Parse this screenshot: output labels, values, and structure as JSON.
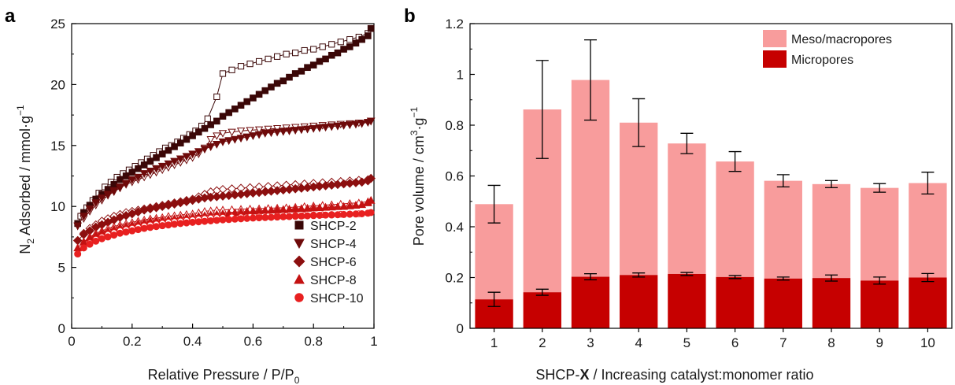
{
  "chart_data": [
    {
      "panel": "a",
      "type": "scatter",
      "xlabel": "Relative Pressure / P/P",
      "xlabel_sub": "0",
      "ylabel_pre": "N",
      "ylabel_sub": "2",
      "ylabel_post": " Adsorbed / mmol·g",
      "ylabel_sup": "−1",
      "xlim": [
        0,
        1
      ],
      "ylim": [
        0,
        25
      ],
      "xticks": [
        "0",
        "0.2",
        "0.4",
        "0.6",
        "0.8",
        "1"
      ],
      "yticks": [
        "0",
        "5",
        "10",
        "15",
        "20",
        "25"
      ],
      "legend_position": "bottom-right",
      "series": [
        {
          "name": "SHCP-2",
          "marker": "square",
          "color": "#3a0707",
          "adsorption_x": [
            0.02,
            0.04,
            0.06,
            0.08,
            0.1,
            0.12,
            0.14,
            0.16,
            0.18,
            0.2,
            0.22,
            0.24,
            0.26,
            0.28,
            0.3,
            0.32,
            0.34,
            0.36,
            0.38,
            0.4,
            0.42,
            0.44,
            0.46,
            0.48,
            0.5,
            0.52,
            0.54,
            0.56,
            0.58,
            0.6,
            0.62,
            0.64,
            0.66,
            0.68,
            0.7,
            0.72,
            0.74,
            0.76,
            0.78,
            0.8,
            0.82,
            0.84,
            0.86,
            0.88,
            0.9,
            0.92,
            0.94,
            0.96,
            0.98,
            0.99
          ],
          "adsorption_y": [
            8.6,
            9.5,
            10.1,
            10.6,
            11.0,
            11.4,
            11.8,
            12.2,
            12.5,
            12.8,
            13.1,
            13.4,
            13.7,
            14.0,
            14.3,
            14.6,
            14.9,
            15.2,
            15.5,
            15.8,
            16.1,
            16.4,
            16.7,
            17.0,
            17.4,
            17.7,
            18.0,
            18.3,
            18.6,
            18.9,
            19.2,
            19.5,
            19.8,
            20.1,
            20.3,
            20.6,
            20.9,
            21.1,
            21.4,
            21.6,
            21.9,
            22.1,
            22.4,
            22.6,
            22.9,
            23.1,
            23.4,
            23.7,
            24.0,
            24.6
          ],
          "desorption_x": [
            0.98,
            0.95,
            0.92,
            0.89,
            0.86,
            0.83,
            0.8,
            0.77,
            0.74,
            0.71,
            0.68,
            0.65,
            0.62,
            0.59,
            0.56,
            0.53,
            0.5,
            0.48,
            0.45,
            0.43,
            0.41,
            0.39,
            0.37,
            0.35,
            0.33,
            0.31,
            0.29,
            0.27,
            0.25,
            0.23,
            0.21,
            0.19,
            0.17,
            0.15,
            0.13,
            0.11,
            0.09,
            0.07,
            0.05,
            0.03
          ],
          "desorption_y": [
            24.2,
            23.9,
            23.7,
            23.5,
            23.3,
            23.1,
            22.9,
            22.8,
            22.6,
            22.5,
            22.3,
            22.1,
            21.9,
            21.7,
            21.5,
            21.2,
            20.9,
            19.0,
            17.2,
            16.6,
            16.2,
            15.9,
            15.6,
            15.3,
            15.0,
            14.8,
            14.5,
            14.2,
            13.9,
            13.6,
            13.3,
            13.0,
            12.7,
            12.4,
            12.0,
            11.6,
            11.1,
            10.5,
            9.9,
            9.2
          ]
        },
        {
          "name": "SHCP-4",
          "marker": "triangle-down",
          "color": "#6e0a0a",
          "adsorption_x": [
            0.02,
            0.04,
            0.06,
            0.08,
            0.1,
            0.12,
            0.14,
            0.16,
            0.18,
            0.2,
            0.22,
            0.24,
            0.26,
            0.28,
            0.3,
            0.32,
            0.34,
            0.36,
            0.38,
            0.4,
            0.42,
            0.44,
            0.46,
            0.48,
            0.5,
            0.52,
            0.54,
            0.56,
            0.58,
            0.6,
            0.62,
            0.64,
            0.66,
            0.68,
            0.7,
            0.72,
            0.74,
            0.76,
            0.78,
            0.8,
            0.82,
            0.84,
            0.86,
            0.88,
            0.9,
            0.92,
            0.94,
            0.96,
            0.98,
            0.99
          ],
          "adsorption_y": [
            8.4,
            9.2,
            9.8,
            10.3,
            10.7,
            11.0,
            11.3,
            11.6,
            11.9,
            12.2,
            12.4,
            12.7,
            12.9,
            13.1,
            13.3,
            13.5,
            13.7,
            13.9,
            14.1,
            14.3,
            14.5,
            14.7,
            14.9,
            15.1,
            15.3,
            15.4,
            15.5,
            15.6,
            15.7,
            15.8,
            15.9,
            16.0,
            16.05,
            16.1,
            16.15,
            16.2,
            16.25,
            16.3,
            16.35,
            16.4,
            16.45,
            16.5,
            16.55,
            16.6,
            16.65,
            16.7,
            16.75,
            16.8,
            16.9,
            17.0
          ],
          "desorption_x": [
            0.98,
            0.95,
            0.92,
            0.89,
            0.86,
            0.83,
            0.8,
            0.77,
            0.74,
            0.71,
            0.68,
            0.65,
            0.62,
            0.59,
            0.56,
            0.53,
            0.5,
            0.48,
            0.46,
            0.44,
            0.42,
            0.4,
            0.38,
            0.36,
            0.34,
            0.32,
            0.3,
            0.28,
            0.26,
            0.24,
            0.22,
            0.2,
            0.18,
            0.16,
            0.14,
            0.12,
            0.1,
            0.08,
            0.06,
            0.04
          ],
          "desorption_y": [
            16.9,
            16.85,
            16.8,
            16.75,
            16.7,
            16.65,
            16.6,
            16.55,
            16.5,
            16.45,
            16.4,
            16.35,
            16.3,
            16.25,
            16.2,
            16.1,
            16.0,
            15.8,
            15.5,
            14.8,
            14.3,
            14.0,
            13.8,
            13.6,
            13.4,
            13.2,
            13.0,
            12.8,
            12.6,
            12.4,
            12.2,
            12.0,
            11.8,
            11.5,
            11.2,
            10.9,
            10.5,
            10.1,
            9.6,
            9.0
          ]
        },
        {
          "name": "SHCP-6",
          "marker": "diamond",
          "color": "#8c0f0f",
          "adsorption_x": [
            0.02,
            0.04,
            0.06,
            0.08,
            0.1,
            0.12,
            0.14,
            0.16,
            0.18,
            0.2,
            0.22,
            0.24,
            0.26,
            0.28,
            0.3,
            0.32,
            0.34,
            0.36,
            0.38,
            0.4,
            0.42,
            0.44,
            0.46,
            0.48,
            0.5,
            0.52,
            0.54,
            0.56,
            0.58,
            0.6,
            0.62,
            0.64,
            0.66,
            0.68,
            0.7,
            0.72,
            0.74,
            0.76,
            0.78,
            0.8,
            0.82,
            0.84,
            0.86,
            0.88,
            0.9,
            0.92,
            0.94,
            0.96,
            0.98,
            0.99
          ],
          "adsorption_y": [
            7.2,
            7.7,
            8.0,
            8.3,
            8.5,
            8.7,
            8.9,
            9.1,
            9.25,
            9.4,
            9.55,
            9.7,
            9.8,
            9.9,
            10.0,
            10.1,
            10.2,
            10.3,
            10.4,
            10.5,
            10.6,
            10.7,
            10.75,
            10.8,
            10.85,
            10.9,
            10.95,
            11.0,
            11.05,
            11.1,
            11.15,
            11.2,
            11.25,
            11.3,
            11.35,
            11.4,
            11.45,
            11.5,
            11.55,
            11.6,
            11.65,
            11.7,
            11.75,
            11.8,
            11.85,
            11.9,
            11.95,
            12.0,
            12.1,
            12.3
          ],
          "desorption_x": [
            0.98,
            0.95,
            0.92,
            0.89,
            0.86,
            0.83,
            0.8,
            0.77,
            0.74,
            0.71,
            0.68,
            0.65,
            0.62,
            0.59,
            0.56,
            0.53,
            0.5,
            0.48,
            0.46,
            0.44,
            0.42,
            0.4,
            0.38,
            0.36,
            0.34,
            0.32,
            0.3,
            0.28,
            0.26,
            0.24,
            0.22,
            0.2,
            0.18,
            0.16,
            0.14,
            0.12,
            0.1,
            0.08,
            0.06,
            0.04
          ],
          "desorption_y": [
            12.2,
            12.15,
            12.1,
            12.05,
            12.0,
            11.95,
            11.9,
            11.85,
            11.8,
            11.75,
            11.7,
            11.65,
            11.6,
            11.55,
            11.5,
            11.45,
            11.4,
            11.3,
            11.2,
            11.0,
            10.8,
            10.6,
            10.5,
            10.4,
            10.3,
            10.2,
            10.1,
            10.0,
            9.9,
            9.8,
            9.7,
            9.6,
            9.5,
            9.35,
            9.2,
            9.0,
            8.8,
            8.5,
            8.2,
            7.8
          ]
        },
        {
          "name": "SHCP-8",
          "marker": "triangle-up",
          "color": "#c41212",
          "adsorption_x": [
            0.02,
            0.04,
            0.06,
            0.08,
            0.1,
            0.12,
            0.14,
            0.16,
            0.18,
            0.2,
            0.22,
            0.24,
            0.26,
            0.28,
            0.3,
            0.32,
            0.34,
            0.36,
            0.38,
            0.4,
            0.42,
            0.44,
            0.46,
            0.48,
            0.5,
            0.52,
            0.54,
            0.56,
            0.58,
            0.6,
            0.62,
            0.64,
            0.66,
            0.68,
            0.7,
            0.72,
            0.74,
            0.76,
            0.78,
            0.8,
            0.82,
            0.84,
            0.86,
            0.88,
            0.9,
            0.92,
            0.94,
            0.96,
            0.98,
            0.99
          ],
          "adsorption_y": [
            6.6,
            7.1,
            7.4,
            7.65,
            7.85,
            8.0,
            8.15,
            8.3,
            8.4,
            8.5,
            8.6,
            8.7,
            8.8,
            8.85,
            8.9,
            8.95,
            9.0,
            9.05,
            9.1,
            9.15,
            9.2,
            9.25,
            9.3,
            9.35,
            9.4,
            9.45,
            9.5,
            9.55,
            9.6,
            9.62,
            9.65,
            9.68,
            9.7,
            9.72,
            9.75,
            9.78,
            9.8,
            9.83,
            9.85,
            9.88,
            9.9,
            9.93,
            9.95,
            9.98,
            10.0,
            10.05,
            10.1,
            10.15,
            10.3,
            10.5
          ],
          "desorption_x": [
            0.98,
            0.95,
            0.92,
            0.89,
            0.86,
            0.83,
            0.8,
            0.77,
            0.74,
            0.71,
            0.68,
            0.65,
            0.62,
            0.59,
            0.56,
            0.53,
            0.5,
            0.48,
            0.46,
            0.44,
            0.42,
            0.4,
            0.38,
            0.36,
            0.34,
            0.32,
            0.3,
            0.28,
            0.26,
            0.24,
            0.22,
            0.2,
            0.18,
            0.16,
            0.14,
            0.12,
            0.1,
            0.08,
            0.06,
            0.04
          ],
          "desorption_y": [
            10.4,
            10.3,
            10.25,
            10.2,
            10.15,
            10.1,
            10.05,
            10.0,
            9.95,
            9.9,
            9.88,
            9.85,
            9.82,
            9.8,
            9.78,
            9.75,
            9.72,
            9.7,
            9.65,
            9.6,
            9.5,
            9.4,
            9.35,
            9.3,
            9.25,
            9.2,
            9.1,
            9.05,
            9.0,
            8.9,
            8.8,
            8.7,
            8.6,
            8.5,
            8.35,
            8.2,
            8.0,
            7.8,
            7.5,
            7.1
          ]
        },
        {
          "name": "SHCP-10",
          "marker": "circle",
          "color": "#e82020",
          "adsorption_x": [
            0.02,
            0.04,
            0.06,
            0.08,
            0.1,
            0.12,
            0.14,
            0.16,
            0.18,
            0.2,
            0.22,
            0.24,
            0.26,
            0.28,
            0.3,
            0.32,
            0.34,
            0.36,
            0.38,
            0.4,
            0.42,
            0.44,
            0.46,
            0.48,
            0.5,
            0.52,
            0.54,
            0.56,
            0.58,
            0.6,
            0.62,
            0.64,
            0.66,
            0.68,
            0.7,
            0.72,
            0.74,
            0.76,
            0.78,
            0.8,
            0.82,
            0.84,
            0.86,
            0.88,
            0.9,
            0.92,
            0.94,
            0.96,
            0.98,
            0.99
          ],
          "adsorption_y": [
            6.1,
            6.6,
            6.9,
            7.15,
            7.35,
            7.5,
            7.65,
            7.8,
            7.9,
            8.0,
            8.1,
            8.2,
            8.28,
            8.35,
            8.42,
            8.48,
            8.54,
            8.6,
            8.65,
            8.7,
            8.74,
            8.78,
            8.82,
            8.86,
            8.9,
            8.93,
            8.96,
            8.99,
            9.02,
            9.05,
            9.07,
            9.09,
            9.11,
            9.13,
            9.15,
            9.17,
            9.19,
            9.21,
            9.23,
            9.25,
            9.27,
            9.29,
            9.3,
            9.32,
            9.34,
            9.36,
            9.38,
            9.4,
            9.45,
            9.5
          ],
          "desorption_x": [
            0.98,
            0.95,
            0.92,
            0.89,
            0.86,
            0.83,
            0.8,
            0.77,
            0.74,
            0.71,
            0.68,
            0.65,
            0.62,
            0.59,
            0.56,
            0.53,
            0.5,
            0.48,
            0.46,
            0.44,
            0.42,
            0.4,
            0.38,
            0.36,
            0.34,
            0.32,
            0.3,
            0.28,
            0.26,
            0.24,
            0.22,
            0.2,
            0.18,
            0.16,
            0.14,
            0.12,
            0.1,
            0.08,
            0.06,
            0.04
          ],
          "desorption_y": [
            9.45,
            9.4,
            9.38,
            9.36,
            9.34,
            9.32,
            9.3,
            9.28,
            9.26,
            9.24,
            9.22,
            9.2,
            9.18,
            9.16,
            9.14,
            9.12,
            9.1,
            9.08,
            9.05,
            9.0,
            8.95,
            8.9,
            8.85,
            8.8,
            8.75,
            8.7,
            8.62,
            8.55,
            8.48,
            8.4,
            8.3,
            8.2,
            8.1,
            8.0,
            7.85,
            7.7,
            7.5,
            7.3,
            7.0,
            6.6
          ]
        }
      ]
    },
    {
      "panel": "b",
      "type": "bar",
      "stacked": true,
      "xlabel_pre": "SHCP-",
      "xlabel_bold": "X",
      "xlabel_post": " / Increasing catalyst:monomer ratio",
      "ylabel_pre": "Pore volume / cm",
      "ylabel_sup1": "3",
      "ylabel_mid": "·g",
      "ylabel_sup2": "−1",
      "ylim": [
        0,
        1.2
      ],
      "yticks": [
        "0",
        "0.2",
        "0.4",
        "0.6",
        "0.8",
        "1",
        "1.2"
      ],
      "categories": [
        "1",
        "2",
        "3",
        "4",
        "5",
        "6",
        "7",
        "8",
        "9",
        "10"
      ],
      "legend_position": "top-right",
      "series": [
        {
          "name": "Micropores",
          "color": "#c60000",
          "values": [
            0.114,
            0.142,
            0.203,
            0.21,
            0.214,
            0.202,
            0.196,
            0.198,
            0.188,
            0.2
          ],
          "errors": [
            0.028,
            0.012,
            0.012,
            0.008,
            0.006,
            0.006,
            0.006,
            0.012,
            0.014,
            0.016
          ]
        },
        {
          "name": "Meso/macropores",
          "color": "#f89c9c",
          "totals": [
            0.489,
            0.862,
            0.978,
            0.81,
            0.728,
            0.657,
            0.581,
            0.568,
            0.553,
            0.572
          ],
          "errors": [
            0.074,
            0.193,
            0.158,
            0.094,
            0.04,
            0.039,
            0.024,
            0.014,
            0.017,
            0.043
          ]
        }
      ]
    }
  ],
  "panel_labels": {
    "a": "a",
    "b": "b"
  }
}
